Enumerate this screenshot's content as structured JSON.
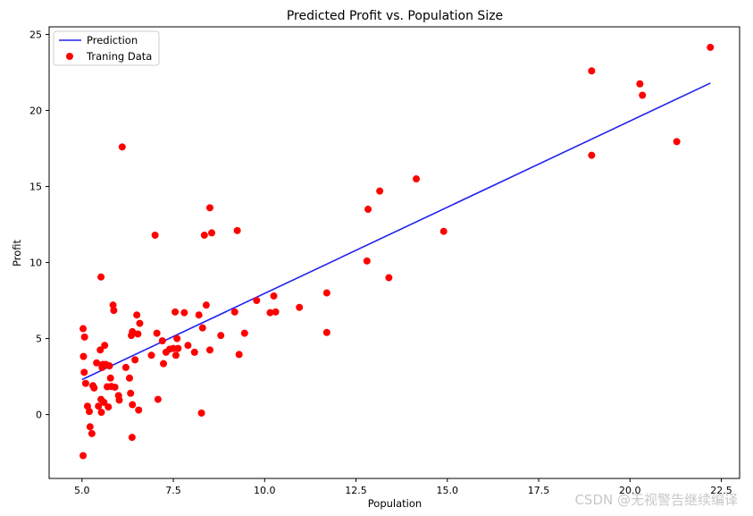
{
  "chart_data": {
    "type": "scatter",
    "title": "Predicted Profit vs. Population Size",
    "xlabel": "Population",
    "ylabel": "Profit",
    "xlim": [
      4.1,
      23.0
    ],
    "ylim": [
      -4.2,
      25.5
    ],
    "x_ticks": [
      5.0,
      7.5,
      10.0,
      12.5,
      15.0,
      17.5,
      20.0,
      22.5
    ],
    "x_tick_labels": [
      "5.0",
      "7.5",
      "10.0",
      "12.5",
      "15.0",
      "17.5",
      "20.0",
      "22.5"
    ],
    "y_ticks": [
      0,
      5,
      10,
      15,
      20,
      25
    ],
    "y_tick_labels": [
      "0",
      "5",
      "10",
      "15",
      "20",
      "25"
    ],
    "grid": false,
    "legend_position": "top-left",
    "series": [
      {
        "name": "Prediction",
        "kind": "line",
        "color": "#2222ee",
        "points": [
          [
            5.0,
            2.3
          ],
          [
            22.2,
            21.8
          ]
        ]
      },
      {
        "name": "Traning Data",
        "kind": "scatter",
        "color": "#ff0000",
        "points": [
          [
            5.03,
            5.65
          ],
          [
            5.07,
            5.1
          ],
          [
            5.04,
            3.82
          ],
          [
            5.06,
            2.78
          ],
          [
            5.1,
            2.05
          ],
          [
            5.03,
            -2.7
          ],
          [
            5.15,
            0.55
          ],
          [
            5.2,
            0.2
          ],
          [
            5.22,
            -0.8
          ],
          [
            5.27,
            -1.25
          ],
          [
            5.3,
            1.9
          ],
          [
            5.33,
            1.75
          ],
          [
            5.4,
            3.4
          ],
          [
            5.45,
            0.55
          ],
          [
            5.5,
            4.25
          ],
          [
            5.52,
            1.0
          ],
          [
            5.55,
            3.1
          ],
          [
            5.57,
            3.3
          ],
          [
            5.53,
            0.15
          ],
          [
            5.6,
            0.8
          ],
          [
            5.62,
            4.55
          ],
          [
            5.65,
            3.3
          ],
          [
            5.69,
            1.83
          ],
          [
            5.72,
            0.5
          ],
          [
            5.75,
            3.2
          ],
          [
            5.78,
            2.4
          ],
          [
            5.8,
            1.85
          ],
          [
            5.85,
            7.2
          ],
          [
            5.87,
            6.85
          ],
          [
            5.9,
            1.8
          ],
          [
            5.52,
            9.05
          ],
          [
            6.0,
            1.25
          ],
          [
            6.02,
            0.95
          ],
          [
            6.1,
            17.6
          ],
          [
            6.2,
            3.1
          ],
          [
            6.3,
            2.4
          ],
          [
            6.33,
            1.4
          ],
          [
            6.35,
            5.2
          ],
          [
            6.38,
            5.45
          ],
          [
            6.38,
            0.65
          ],
          [
            6.37,
            -1.5
          ],
          [
            6.45,
            3.6
          ],
          [
            6.5,
            6.55
          ],
          [
            6.53,
            5.3
          ],
          [
            6.55,
            0.3
          ],
          [
            6.58,
            6.0
          ],
          [
            6.9,
            3.9
          ],
          [
            7.0,
            11.8
          ],
          [
            7.05,
            5.35
          ],
          [
            7.08,
            1.0
          ],
          [
            7.2,
            4.85
          ],
          [
            7.23,
            3.35
          ],
          [
            7.3,
            4.1
          ],
          [
            7.4,
            4.3
          ],
          [
            7.5,
            4.35
          ],
          [
            7.55,
            6.75
          ],
          [
            7.57,
            3.9
          ],
          [
            7.6,
            5.0
          ],
          [
            7.63,
            4.35
          ],
          [
            7.8,
            6.7
          ],
          [
            7.9,
            4.55
          ],
          [
            8.08,
            4.1
          ],
          [
            8.2,
            6.55
          ],
          [
            8.27,
            0.1
          ],
          [
            8.3,
            5.7
          ],
          [
            8.35,
            11.8
          ],
          [
            8.4,
            7.2
          ],
          [
            8.5,
            4.25
          ],
          [
            8.5,
            13.6
          ],
          [
            8.55,
            11.95
          ],
          [
            8.8,
            5.2
          ],
          [
            9.18,
            6.75
          ],
          [
            9.25,
            12.1
          ],
          [
            9.3,
            3.95
          ],
          [
            9.45,
            5.35
          ],
          [
            9.78,
            7.5
          ],
          [
            10.15,
            6.7
          ],
          [
            10.25,
            7.8
          ],
          [
            10.3,
            6.75
          ],
          [
            10.95,
            7.05
          ],
          [
            11.7,
            8.0
          ],
          [
            11.7,
            5.4
          ],
          [
            12.8,
            10.1
          ],
          [
            12.83,
            13.5
          ],
          [
            13.15,
            14.7
          ],
          [
            13.4,
            9.0
          ],
          [
            14.15,
            15.5
          ],
          [
            14.9,
            12.05
          ],
          [
            18.95,
            22.6
          ],
          [
            18.95,
            17.05
          ],
          [
            20.27,
            21.75
          ],
          [
            20.34,
            21.0
          ],
          [
            21.28,
            17.95
          ],
          [
            22.2,
            24.15
          ]
        ]
      }
    ]
  },
  "legend": {
    "prediction_label": "Prediction",
    "training_label": "Traning Data"
  },
  "watermark": "CSDN @无视警告继续编译"
}
